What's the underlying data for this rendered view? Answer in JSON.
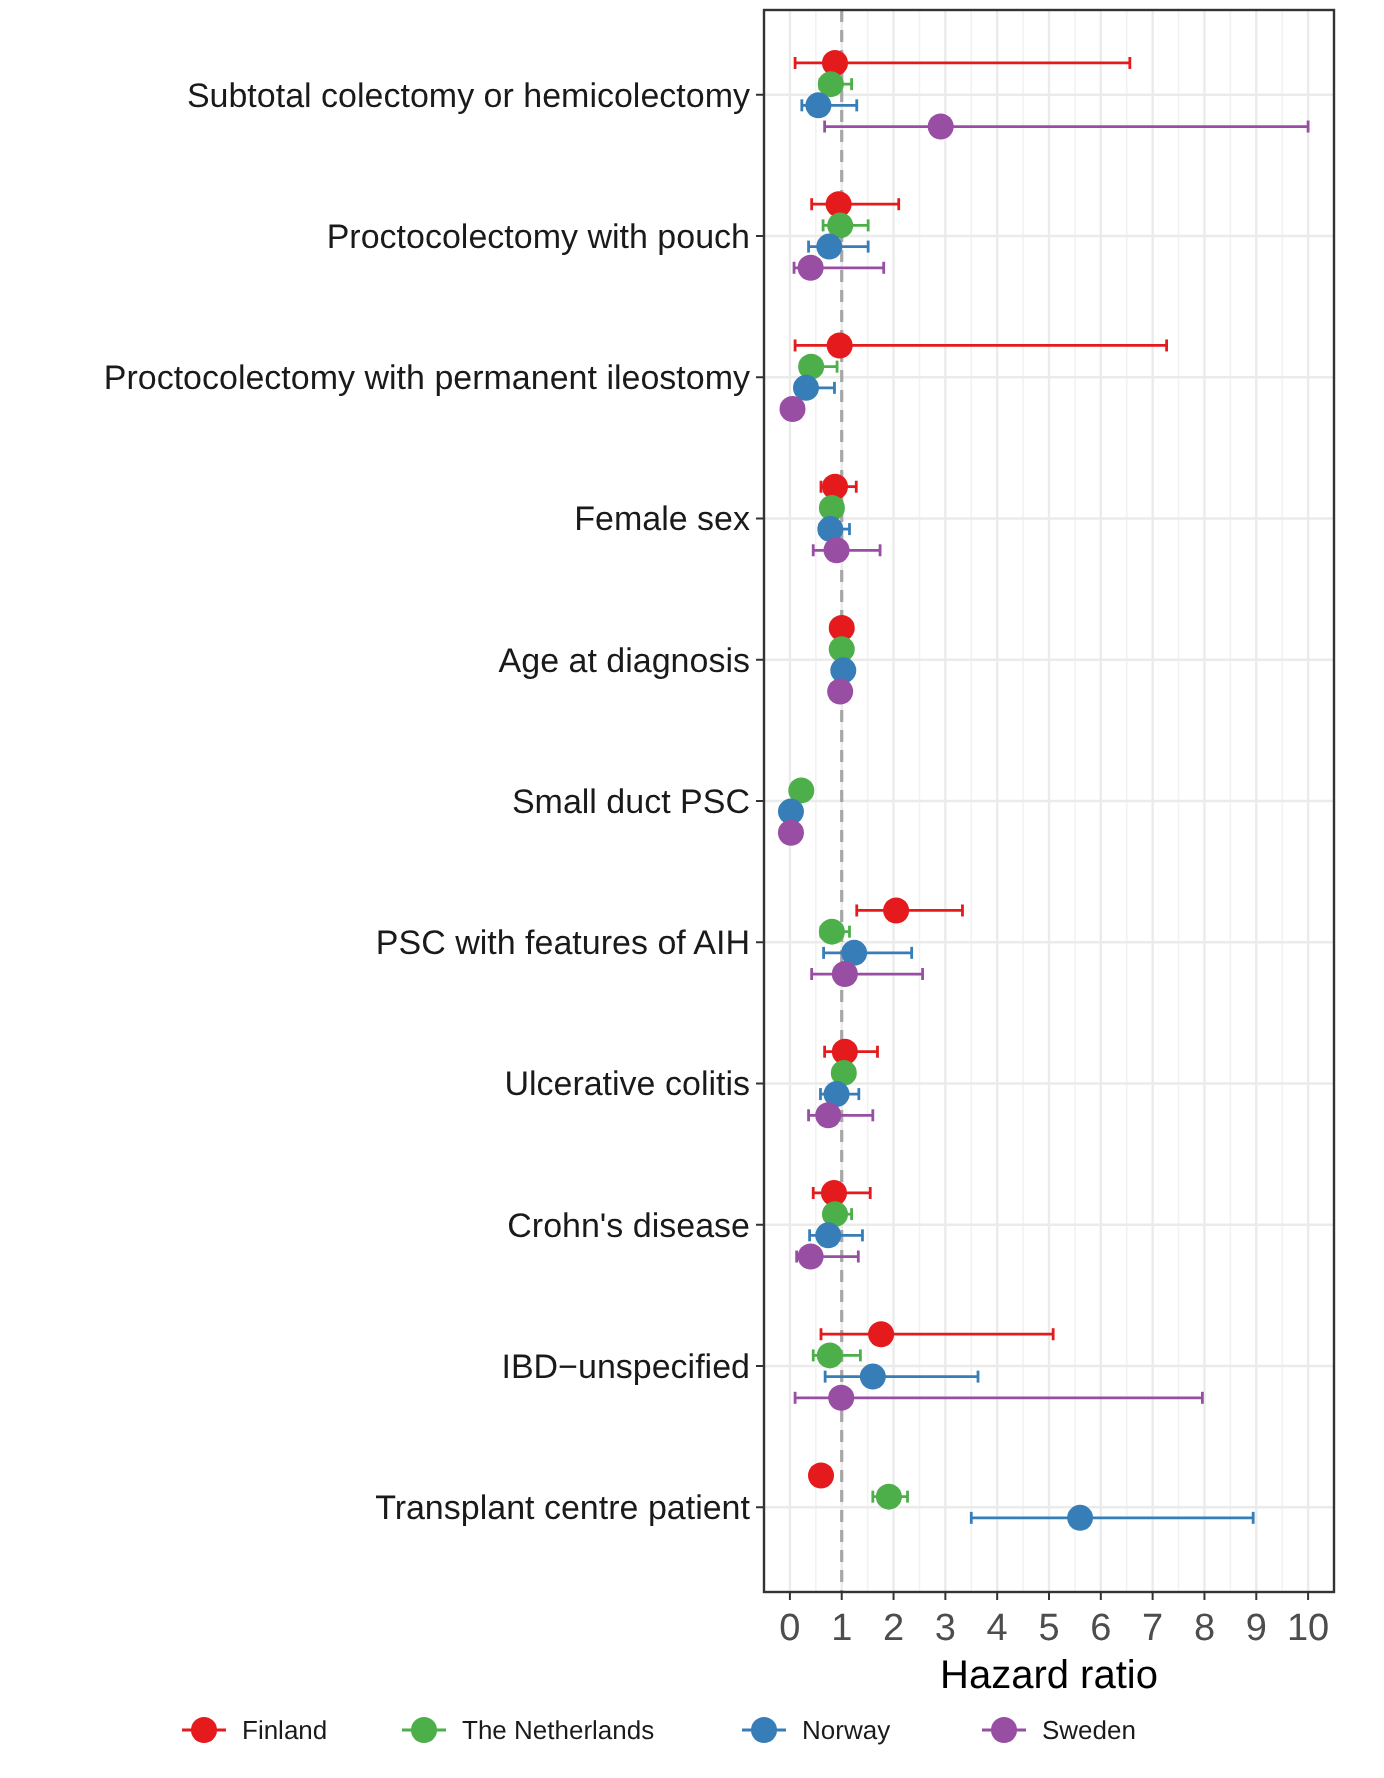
{
  "chart_data": {
    "type": "scatter",
    "orientation": "horizontal",
    "xlabel": "Hazard ratio",
    "xlim": [
      -0.5,
      10.5
    ],
    "xticks": [
      0,
      1,
      2,
      3,
      4,
      5,
      6,
      7,
      8,
      9,
      10
    ],
    "grid": true,
    "legend": "bottom",
    "marker": "circle",
    "categories": [
      "Subtotal colectomy or hemicolectomy",
      "Proctocolectomy with pouch",
      "Proctocolectomy with permanent ileostomy",
      "Female sex",
      "Age at diagnosis",
      "Small duct PSC",
      "PSC with features of AIH",
      "Ulcerative colitis",
      "Crohn's disease",
      "IBD−unspecified",
      "Transplant centre patient"
    ],
    "ref_lines": [
      {
        "axis": "x",
        "value": 1,
        "color": "#a6a6a6",
        "line_style": "dashed"
      }
    ],
    "series": [
      {
        "name": "Finland",
        "color": "#e41a1c",
        "values": [
          0.87,
          0.94,
          0.96,
          0.87,
          1.0,
          null,
          2.05,
          1.06,
          0.85,
          1.76,
          0.6
        ],
        "errors": [
          [
            0.1,
            6.56
          ],
          [
            0.42,
            2.1
          ],
          [
            0.1,
            7.27
          ],
          [
            0.6,
            1.28
          ],
          null,
          null,
          [
            1.29,
            3.33
          ],
          [
            0.67,
            1.69
          ],
          [
            0.45,
            1.55
          ],
          [
            0.6,
            5.08
          ],
          null
        ]
      },
      {
        "name": "The Netherlands",
        "color": "#4daf4a",
        "values": [
          0.79,
          0.97,
          0.41,
          0.81,
          1.0,
          0.22,
          0.81,
          1.04,
          0.87,
          0.77,
          1.91
        ],
        "errors": [
          [
            0.58,
            1.19
          ],
          [
            0.64,
            1.51
          ],
          [
            0.26,
            0.91
          ],
          null,
          null,
          null,
          [
            0.6,
            1.15
          ],
          null,
          [
            0.71,
            1.19
          ],
          [
            0.45,
            1.36
          ],
          [
            1.6,
            2.27
          ]
        ]
      },
      {
        "name": "Norway",
        "color": "#377eb8",
        "values": [
          0.55,
          0.76,
          0.31,
          0.78,
          1.03,
          0.02,
          1.24,
          0.9,
          0.74,
          1.6,
          5.6
        ],
        "errors": [
          [
            0.23,
            1.29
          ],
          [
            0.36,
            1.51
          ],
          [
            0.15,
            0.86
          ],
          [
            0.58,
            1.15
          ],
          null,
          null,
          [
            0.65,
            2.35
          ],
          [
            0.59,
            1.33
          ],
          [
            0.38,
            1.4
          ],
          [
            0.68,
            3.63
          ],
          [
            3.5,
            8.94
          ]
        ]
      },
      {
        "name": "Sweden",
        "color": "#984ea3",
        "values": [
          2.91,
          0.4,
          0.05,
          0.9,
          0.97,
          0.02,
          1.06,
          0.74,
          0.4,
          0.99,
          null
        ],
        "errors": [
          [
            0.67,
            10.0
          ],
          [
            0.08,
            1.81
          ],
          null,
          [
            0.45,
            1.74
          ],
          null,
          null,
          [
            0.42,
            2.56
          ],
          [
            0.36,
            1.6
          ],
          [
            0.13,
            1.32
          ],
          [
            0.1,
            7.96
          ],
          null
        ]
      }
    ]
  }
}
